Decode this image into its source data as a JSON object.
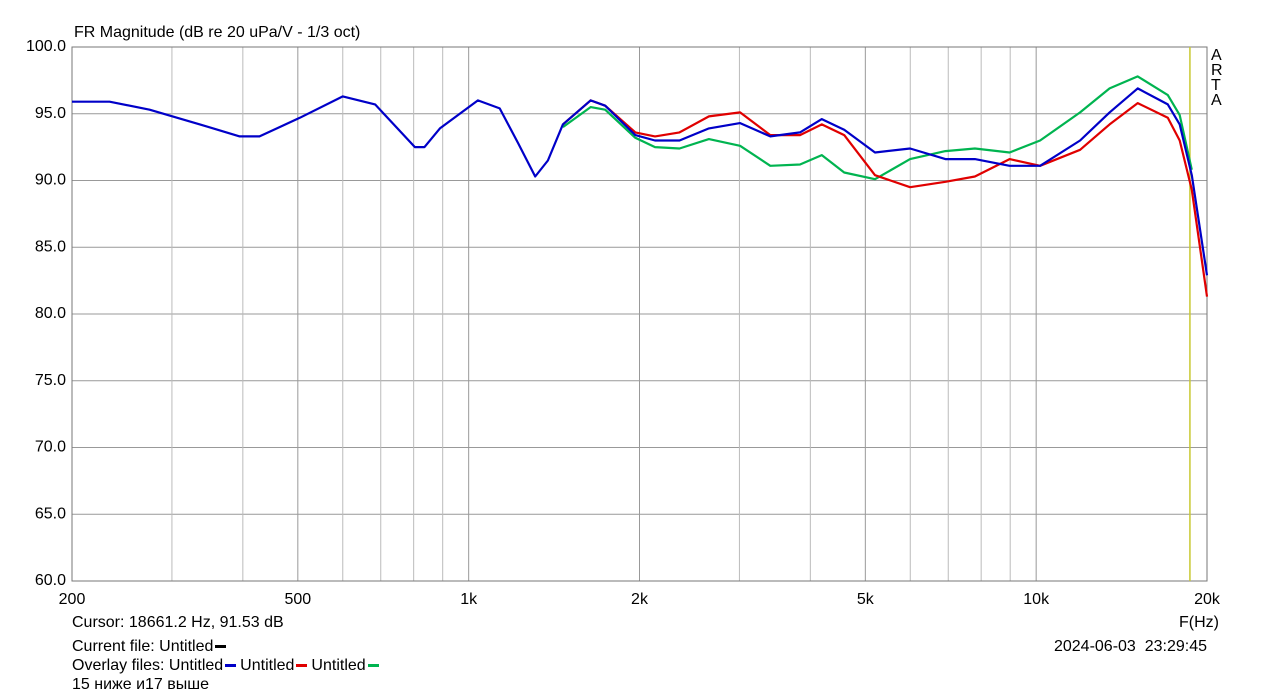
{
  "chart_data": {
    "type": "line",
    "title": "FR Magnitude (dB re 20 uPa/V - 1/3 oct)",
    "x_label": "F(Hz)",
    "brand": "ARTA",
    "log_x": true,
    "grid": true,
    "xlim": [
      200,
      20000
    ],
    "ylim": [
      60,
      100
    ],
    "xticks": [
      200,
      500,
      {
        "value": 1000,
        "label": "1k"
      },
      {
        "value": 2000,
        "label": "2k"
      },
      {
        "value": 5000,
        "label": "5k"
      },
      {
        "value": 10000,
        "label": "10k"
      },
      {
        "value": 20000,
        "label": "20k"
      }
    ],
    "xminor_ticks": [
      300,
      400,
      600,
      700,
      800,
      900,
      3000,
      4000,
      6000,
      7000,
      8000,
      9000
    ],
    "yticks": [
      {
        "value": 60,
        "label": "60.0"
      },
      {
        "value": 65,
        "label": "65.0"
      },
      {
        "value": 70,
        "label": "70.0"
      },
      {
        "value": 75,
        "label": "75.0"
      },
      {
        "value": 80,
        "label": "80.0"
      },
      {
        "value": 85,
        "label": "85.0"
      },
      {
        "value": 90,
        "label": "90.0"
      },
      {
        "value": 95,
        "label": "95.0"
      },
      {
        "value": 100,
        "label": "100.0"
      }
    ],
    "x": [
      200,
      233,
      274,
      336,
      395,
      428,
      504,
      600,
      684,
      804,
      836,
      890,
      1038,
      1134,
      1222,
      1310,
      1379,
      1466,
      1640,
      1740,
      1966,
      2130,
      2352,
      2650,
      3008,
      3400,
      3836,
      4190,
      4590,
      5200,
      5996,
      6920,
      7800,
      8980,
      10160,
      11950,
      13470,
      15100,
      17060,
      17900,
      18800,
      20000
    ],
    "series": [
      {
        "name": "Untitled",
        "color": "#0000c8",
        "values": [
          95.9,
          95.9,
          95.3,
          94.2,
          93.3,
          93.3,
          94.7,
          96.3,
          95.7,
          92.5,
          92.5,
          93.9,
          96.0,
          95.4,
          92.8,
          90.3,
          91.5,
          94.2,
          96.0,
          95.6,
          93.4,
          93.0,
          93.0,
          93.9,
          94.3,
          93.3,
          93.6,
          94.6,
          93.8,
          92.1,
          92.4,
          91.6,
          91.6,
          91.1,
          91.1,
          93.0,
          95.1,
          96.9,
          95.7,
          94.2,
          90.4,
          82.9
        ]
      },
      {
        "name": "Untitled",
        "color": "#e00000",
        "values": [
          null,
          null,
          null,
          null,
          null,
          null,
          null,
          null,
          null,
          null,
          null,
          null,
          null,
          null,
          null,
          null,
          null,
          94.2,
          96.0,
          95.6,
          93.6,
          93.3,
          93.6,
          94.8,
          95.1,
          93.4,
          93.4,
          94.2,
          93.4,
          90.4,
          89.5,
          89.9,
          90.3,
          91.6,
          91.1,
          92.3,
          94.2,
          95.8,
          94.7,
          93.0,
          89.3,
          81.3
        ]
      },
      {
        "name": "Untitled",
        "color": "#00b450",
        "values": [
          null,
          null,
          null,
          null,
          null,
          null,
          null,
          null,
          null,
          null,
          null,
          null,
          null,
          null,
          null,
          null,
          null,
          94.0,
          95.5,
          95.3,
          93.2,
          92.5,
          92.4,
          93.1,
          92.6,
          91.1,
          91.2,
          91.9,
          90.6,
          90.1,
          91.6,
          92.2,
          92.4,
          92.1,
          93.0,
          95.1,
          96.9,
          97.8,
          96.4,
          94.9,
          90.8,
          null
        ]
      }
    ],
    "cursor": {
      "label": "Cursor: 18661.2 Hz, 91.53 dB",
      "x": 18661.2,
      "color": "#c8c832"
    },
    "current_file": {
      "label": "Current file: Untitled",
      "color": "#000000"
    },
    "overlay_label": "Overlay files:",
    "timestamp": "2024-06-03  23:29:45",
    "note": "15 ниже и17 выше"
  }
}
